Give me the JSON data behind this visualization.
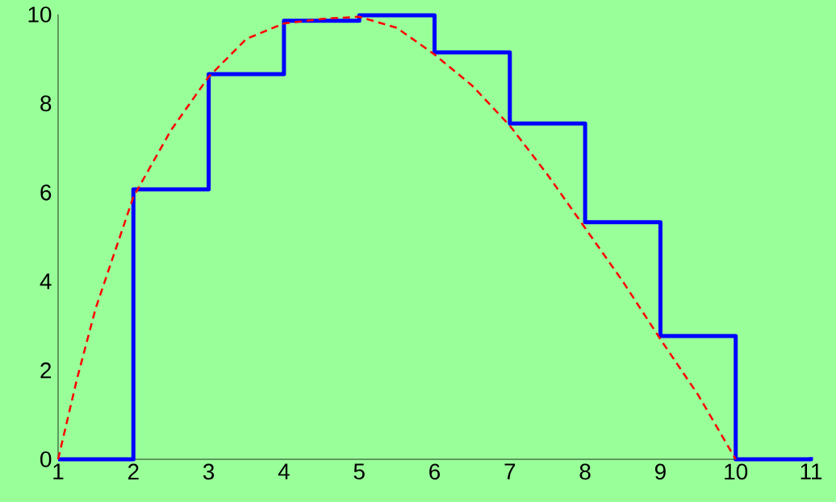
{
  "chart_data": {
    "type": "step",
    "x": [
      1,
      2,
      3,
      4,
      5,
      6,
      7,
      8,
      9,
      10,
      11
    ],
    "series": [
      {
        "color": "#0000ff",
        "line_style": "solid",
        "values": [
          0,
          6.07,
          8.66,
          9.86,
          9.98,
          9.15,
          7.55,
          5.33,
          2.77,
          0,
          0.05
        ]
      },
      {
        "type": "line",
        "color": "#ff0000",
        "line_style": "dashed",
        "x": [
          1,
          1.25,
          1.5,
          2,
          2.5,
          3,
          3.5,
          4,
          4.5,
          5,
          5.5,
          6,
          6.5,
          7,
          7.5,
          8,
          8.5,
          9,
          9.5,
          10
        ],
        "values": [
          0,
          1.8,
          3.4,
          5.9,
          7.4,
          8.6,
          9.45,
          9.8,
          9.9,
          9.95,
          9.7,
          9.1,
          8.4,
          7.5,
          6.4,
          5.2,
          4.0,
          2.7,
          1.45,
          0
        ]
      }
    ],
    "xlim": [
      1,
      11
    ],
    "ylim": [
      0,
      10
    ],
    "xticks": [
      1,
      2,
      3,
      4,
      5,
      6,
      7,
      8,
      9,
      10,
      11
    ],
    "yticks": [
      0,
      2,
      4,
      6,
      8,
      10
    ],
    "grid": false,
    "marker": "none"
  }
}
